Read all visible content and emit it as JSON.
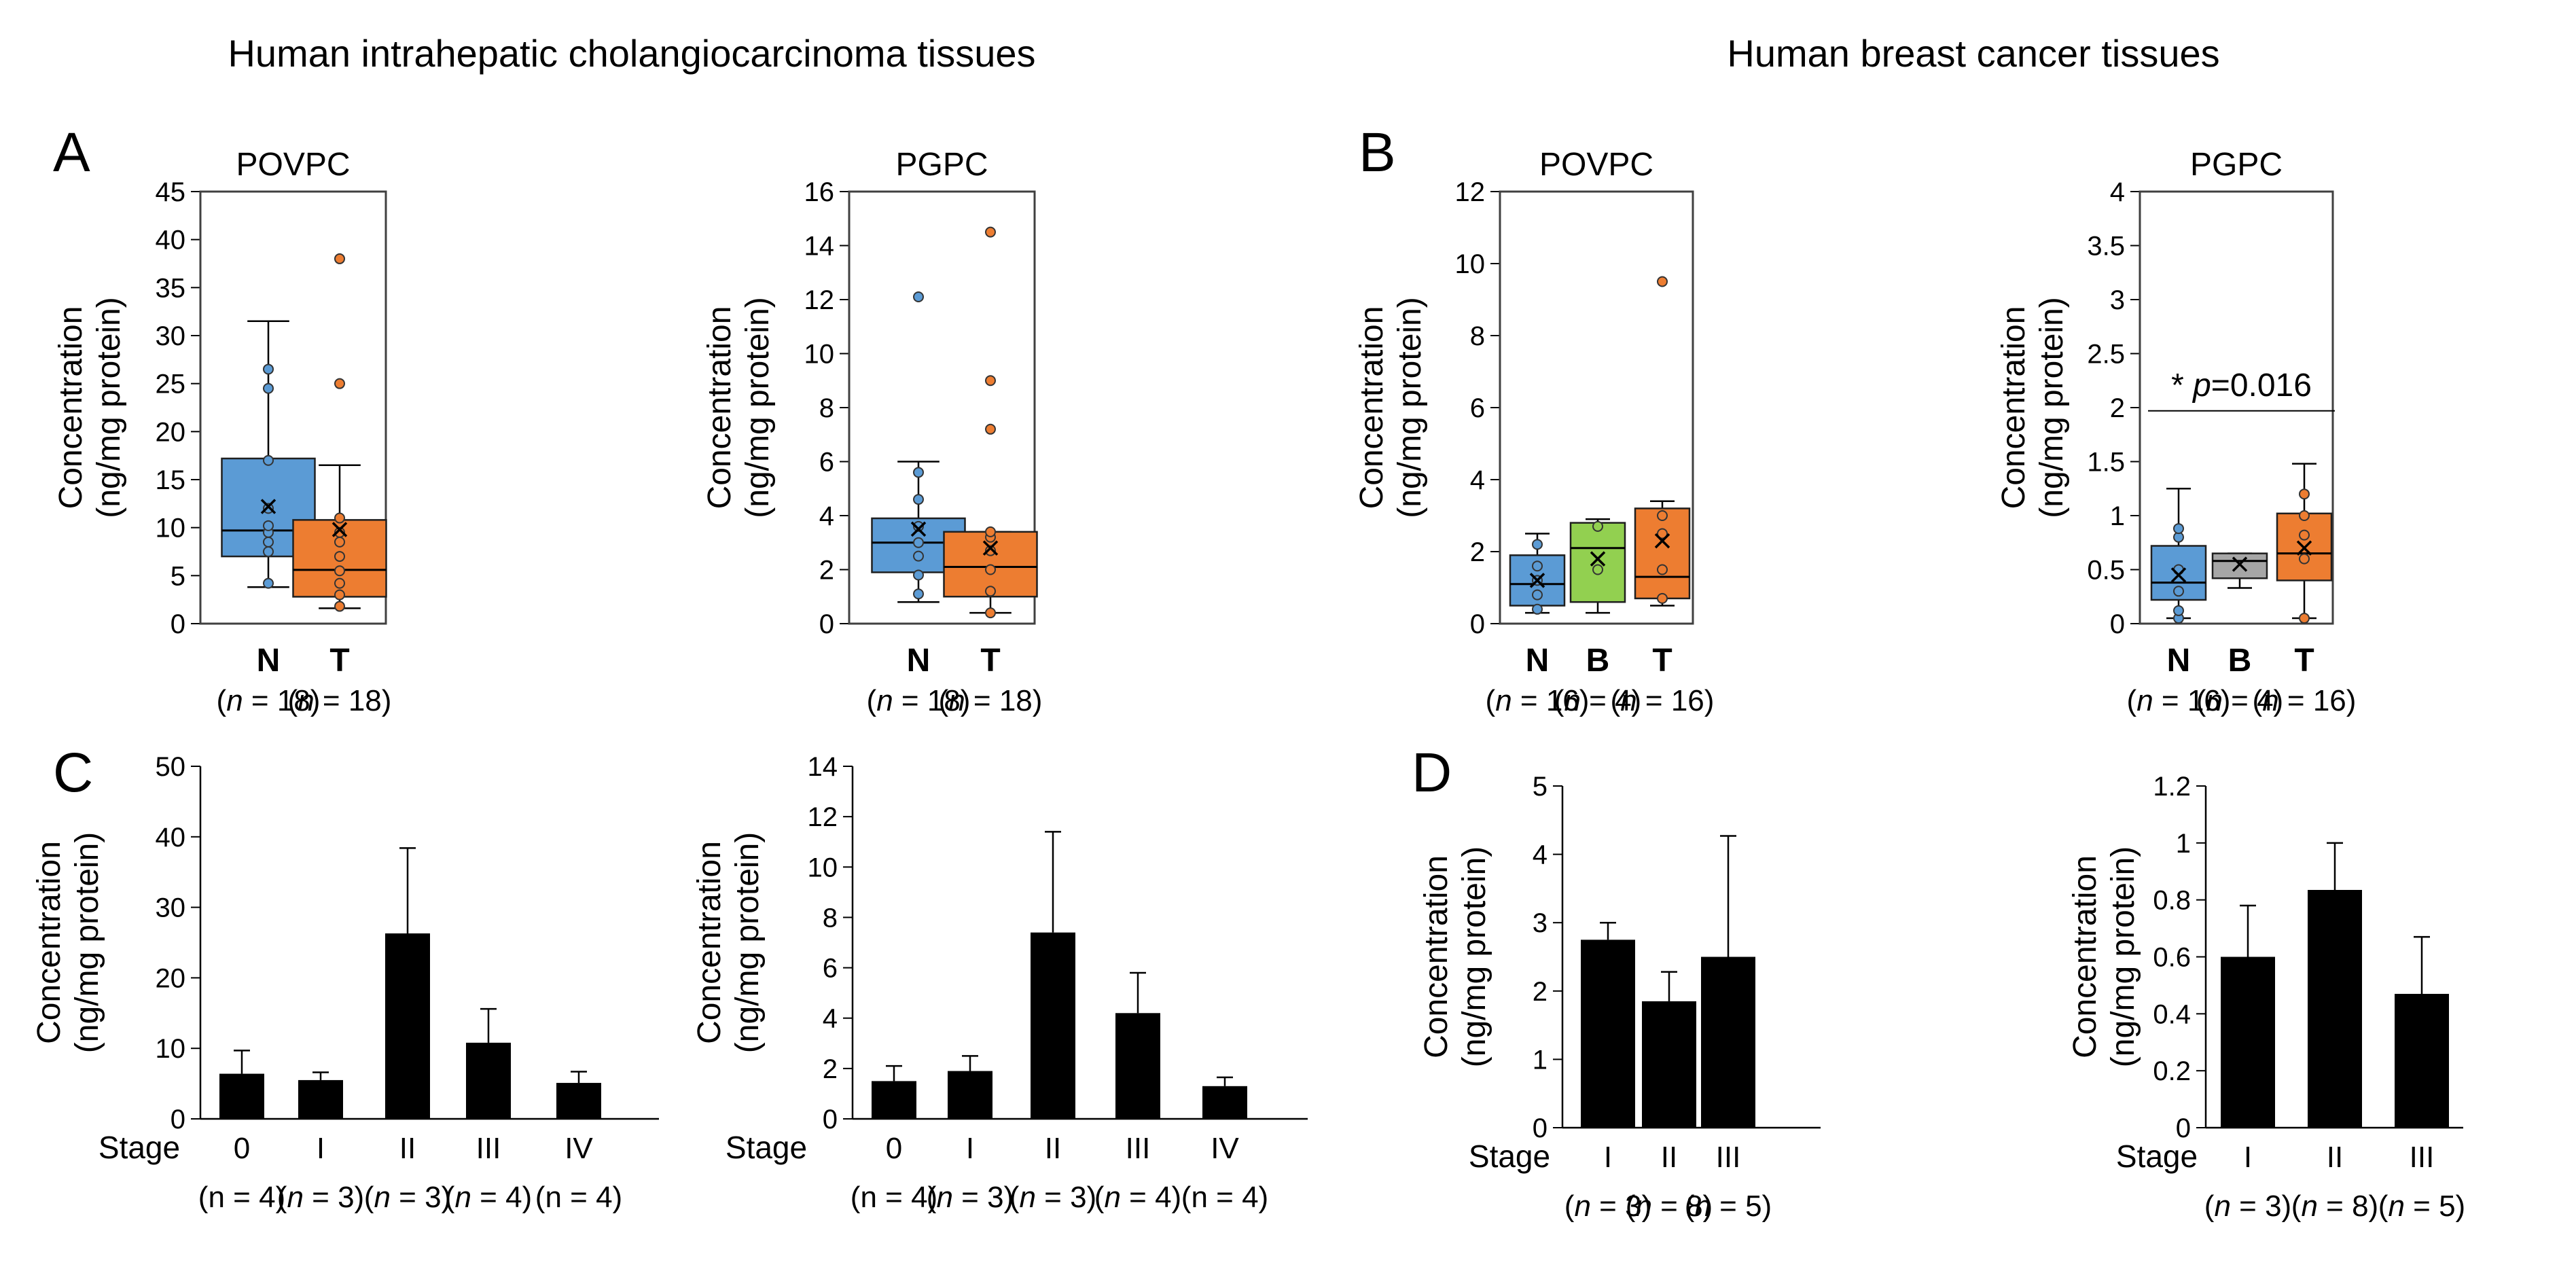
{
  "header": {
    "left_title": "Human intrahepatic cholangiocarcinoma tissues",
    "right_title": "Human breast cancer tissues"
  },
  "panel_letters": [
    "A",
    "B",
    "C",
    "D"
  ],
  "group_labels": {
    "n_18": "(n = 18)",
    "n_16": "(n = 16)",
    "n_4": "(n = 4)"
  },
  "colors": {
    "N": "#5b9bd5",
    "B": "#92d050",
    "T": "#ed7d31",
    "B_breast_pgpc": "#a6a6a6",
    "bar": "#000000"
  },
  "chart_data": [
    {
      "id": "A1",
      "panel": "A",
      "type": "box",
      "title": "POVPC",
      "ylabel": "Concentration (ng/mg protein)",
      "ylim": [
        0,
        45
      ],
      "yticks": [
        0,
        5,
        10,
        15,
        20,
        25,
        30,
        35,
        40,
        45
      ],
      "groups": [
        {
          "name": "N",
          "n": "(n = 18)",
          "color": "#5b9bd5",
          "q1": 7,
          "median": 9.7,
          "q3": 17.2,
          "whisker_low": 3.8,
          "whisker_high": 31.5,
          "mean": 12.2,
          "points": [
            4.2,
            7.5,
            8.5,
            9.5,
            10.2,
            12,
            17,
            24.5,
            26.5
          ]
        },
        {
          "name": "T",
          "n": "(n = 18)",
          "color": "#ed7d31",
          "q1": 2.8,
          "median": 5.6,
          "q3": 10.8,
          "whisker_low": 1.6,
          "whisker_high": 16.5,
          "mean": 9.8,
          "points": [
            1.8,
            3,
            4.2,
            5.5,
            7,
            8.5,
            9.5,
            11,
            25,
            38
          ]
        }
      ]
    },
    {
      "id": "A2",
      "panel": "A",
      "type": "box",
      "title": "PGPC",
      "ylabel": "Concentration (ng/mg protein)",
      "ylim": [
        0,
        16
      ],
      "yticks": [
        0,
        2,
        4,
        6,
        8,
        10,
        12,
        14,
        16
      ],
      "groups": [
        {
          "name": "N",
          "n": "(n = 18)",
          "color": "#5b9bd5",
          "q1": 1.9,
          "median": 3.0,
          "q3": 3.9,
          "whisker_low": 0.8,
          "whisker_high": 6.0,
          "mean": 3.5,
          "points": [
            1.1,
            1.8,
            2.5,
            3.0,
            3.6,
            4.6,
            5.6,
            12.1
          ]
        },
        {
          "name": "T",
          "n": "(n = 18)",
          "color": "#ed7d31",
          "q1": 1.0,
          "median": 2.1,
          "q3": 3.4,
          "whisker_low": 0.4,
          "whisker_high": 3.4,
          "mean": 2.8,
          "points": [
            0.4,
            1.2,
            2.0,
            2.7,
            3.2,
            3.4,
            7.2,
            9.0,
            14.5
          ]
        }
      ]
    },
    {
      "id": "B1",
      "panel": "B",
      "type": "box",
      "title": "POVPC",
      "ylabel": "Concentration (ng/mg protein)",
      "ylim": [
        0,
        12
      ],
      "yticks": [
        0,
        2,
        4,
        6,
        8,
        10,
        12
      ],
      "groups": [
        {
          "name": "N",
          "n": "(n = 16)",
          "color": "#5b9bd5",
          "q1": 0.5,
          "median": 1.1,
          "q3": 1.9,
          "whisker_low": 0.3,
          "whisker_high": 2.5,
          "mean": 1.2,
          "points": [
            0.4,
            0.8,
            1.2,
            1.6,
            2.2
          ]
        },
        {
          "name": "B",
          "n": "(n = 4)",
          "color": "#92d050",
          "q1": 0.6,
          "median": 2.1,
          "q3": 2.8,
          "whisker_low": 0.3,
          "whisker_high": 2.9,
          "mean": 1.8,
          "points": [
            1.5,
            2.7
          ]
        },
        {
          "name": "T",
          "n": "(n = 16)",
          "color": "#ed7d31",
          "q1": 0.7,
          "median": 1.3,
          "q3": 3.2,
          "whisker_low": 0.5,
          "whisker_high": 3.4,
          "mean": 2.3,
          "points": [
            0.7,
            1.5,
            2.5,
            3.0,
            9.5
          ]
        }
      ]
    },
    {
      "id": "B2",
      "panel": "B",
      "type": "box",
      "title": "PGPC",
      "ylabel": "Concentration (ng/mg protein)",
      "ylim": [
        0,
        4
      ],
      "yticks": [
        0,
        0.5,
        1,
        1.5,
        2,
        2.5,
        3,
        3.5,
        4
      ],
      "annotation": {
        "star": "*",
        "p_italic": "p",
        "p_rest": "=0.016",
        "y": 1.97,
        "from": "N",
        "to": "T"
      },
      "groups": [
        {
          "name": "N",
          "n": "(n = 16)",
          "color": "#5b9bd5",
          "q1": 0.22,
          "median": 0.38,
          "q3": 0.72,
          "whisker_low": 0.05,
          "whisker_high": 1.25,
          "mean": 0.45,
          "points": [
            0.05,
            0.12,
            0.3,
            0.5,
            0.8,
            0.88
          ]
        },
        {
          "name": "B",
          "n": "(n = 4)",
          "color": "#a6a6a6",
          "q1": 0.42,
          "median": 0.58,
          "q3": 0.65,
          "whisker_low": 0.33,
          "whisker_high": 0.65,
          "mean": 0.55,
          "points": []
        },
        {
          "name": "T",
          "n": "(n = 16)",
          "color": "#ed7d31",
          "q1": 0.4,
          "median": 0.65,
          "q3": 1.02,
          "whisker_low": 0.05,
          "whisker_high": 1.48,
          "mean": 0.7,
          "points": [
            0.05,
            0.6,
            0.82,
            1.0,
            1.2
          ]
        }
      ]
    },
    {
      "id": "C1",
      "panel": "C",
      "type": "bar",
      "xlabel": "Stage",
      "ylabel": "Concentration (ng/mg protein)",
      "ylim": [
        0,
        50
      ],
      "yticks": [
        0,
        10,
        20,
        30,
        40,
        50
      ],
      "categories": [
        "0",
        "I",
        "II",
        "III",
        "IV"
      ],
      "n_labels": [
        "(n = 4)",
        "(n = 3)",
        "(n = 3)",
        "(n = 4)",
        "(n = 4)"
      ],
      "n_italic": [
        false,
        true,
        true,
        true,
        false
      ],
      "values": [
        6.4,
        5.5,
        26.3,
        10.8,
        5.1
      ],
      "errors": [
        3.3,
        1.1,
        12.1,
        4.8,
        1.6
      ]
    },
    {
      "id": "C2",
      "panel": "C",
      "type": "bar",
      "xlabel": "Stage",
      "ylabel": "Concentration (ng/mg protein)",
      "ylim": [
        0,
        14
      ],
      "yticks": [
        0,
        2,
        4,
        6,
        8,
        10,
        12,
        14
      ],
      "categories": [
        "0",
        "I",
        "II",
        "III",
        "IV"
      ],
      "n_labels": [
        "(n = 4)",
        "(n = 3)",
        "(n = 3)",
        "(n = 4)",
        "(n = 4)"
      ],
      "n_italic": [
        false,
        true,
        true,
        true,
        false
      ],
      "values": [
        1.5,
        1.9,
        7.4,
        4.2,
        1.3
      ],
      "errors": [
        0.6,
        0.6,
        4.0,
        1.6,
        0.35
      ]
    },
    {
      "id": "D1",
      "panel": "D",
      "type": "bar",
      "xlabel": "Stage",
      "ylabel": "Concentration (ng/mg protein)",
      "ylim": [
        0,
        5
      ],
      "yticks": [
        0,
        1,
        2,
        3,
        4,
        5
      ],
      "categories": [
        "I",
        "II",
        "III"
      ],
      "n_labels": [
        "(n = 3)",
        "(n = 8)",
        "(n = 5)"
      ],
      "n_italic": [
        true,
        true,
        true
      ],
      "values": [
        2.75,
        1.85,
        2.5
      ],
      "errors": [
        0.25,
        0.43,
        1.77
      ]
    },
    {
      "id": "D2",
      "panel": "D",
      "type": "bar",
      "xlabel": "Stage",
      "ylabel": "Concentration (ng/mg protein)",
      "ylim": [
        0,
        1.2
      ],
      "yticks": [
        0,
        0.2,
        0.4,
        0.6,
        0.8,
        1,
        1.2
      ],
      "categories": [
        "I",
        "II",
        "III"
      ],
      "n_labels": [
        "(n = 3)",
        "(n = 8)",
        "(n = 5)"
      ],
      "n_italic": [
        true,
        true,
        true
      ],
      "values": [
        0.6,
        0.835,
        0.47
      ],
      "errors": [
        0.18,
        0.165,
        0.2
      ]
    }
  ]
}
